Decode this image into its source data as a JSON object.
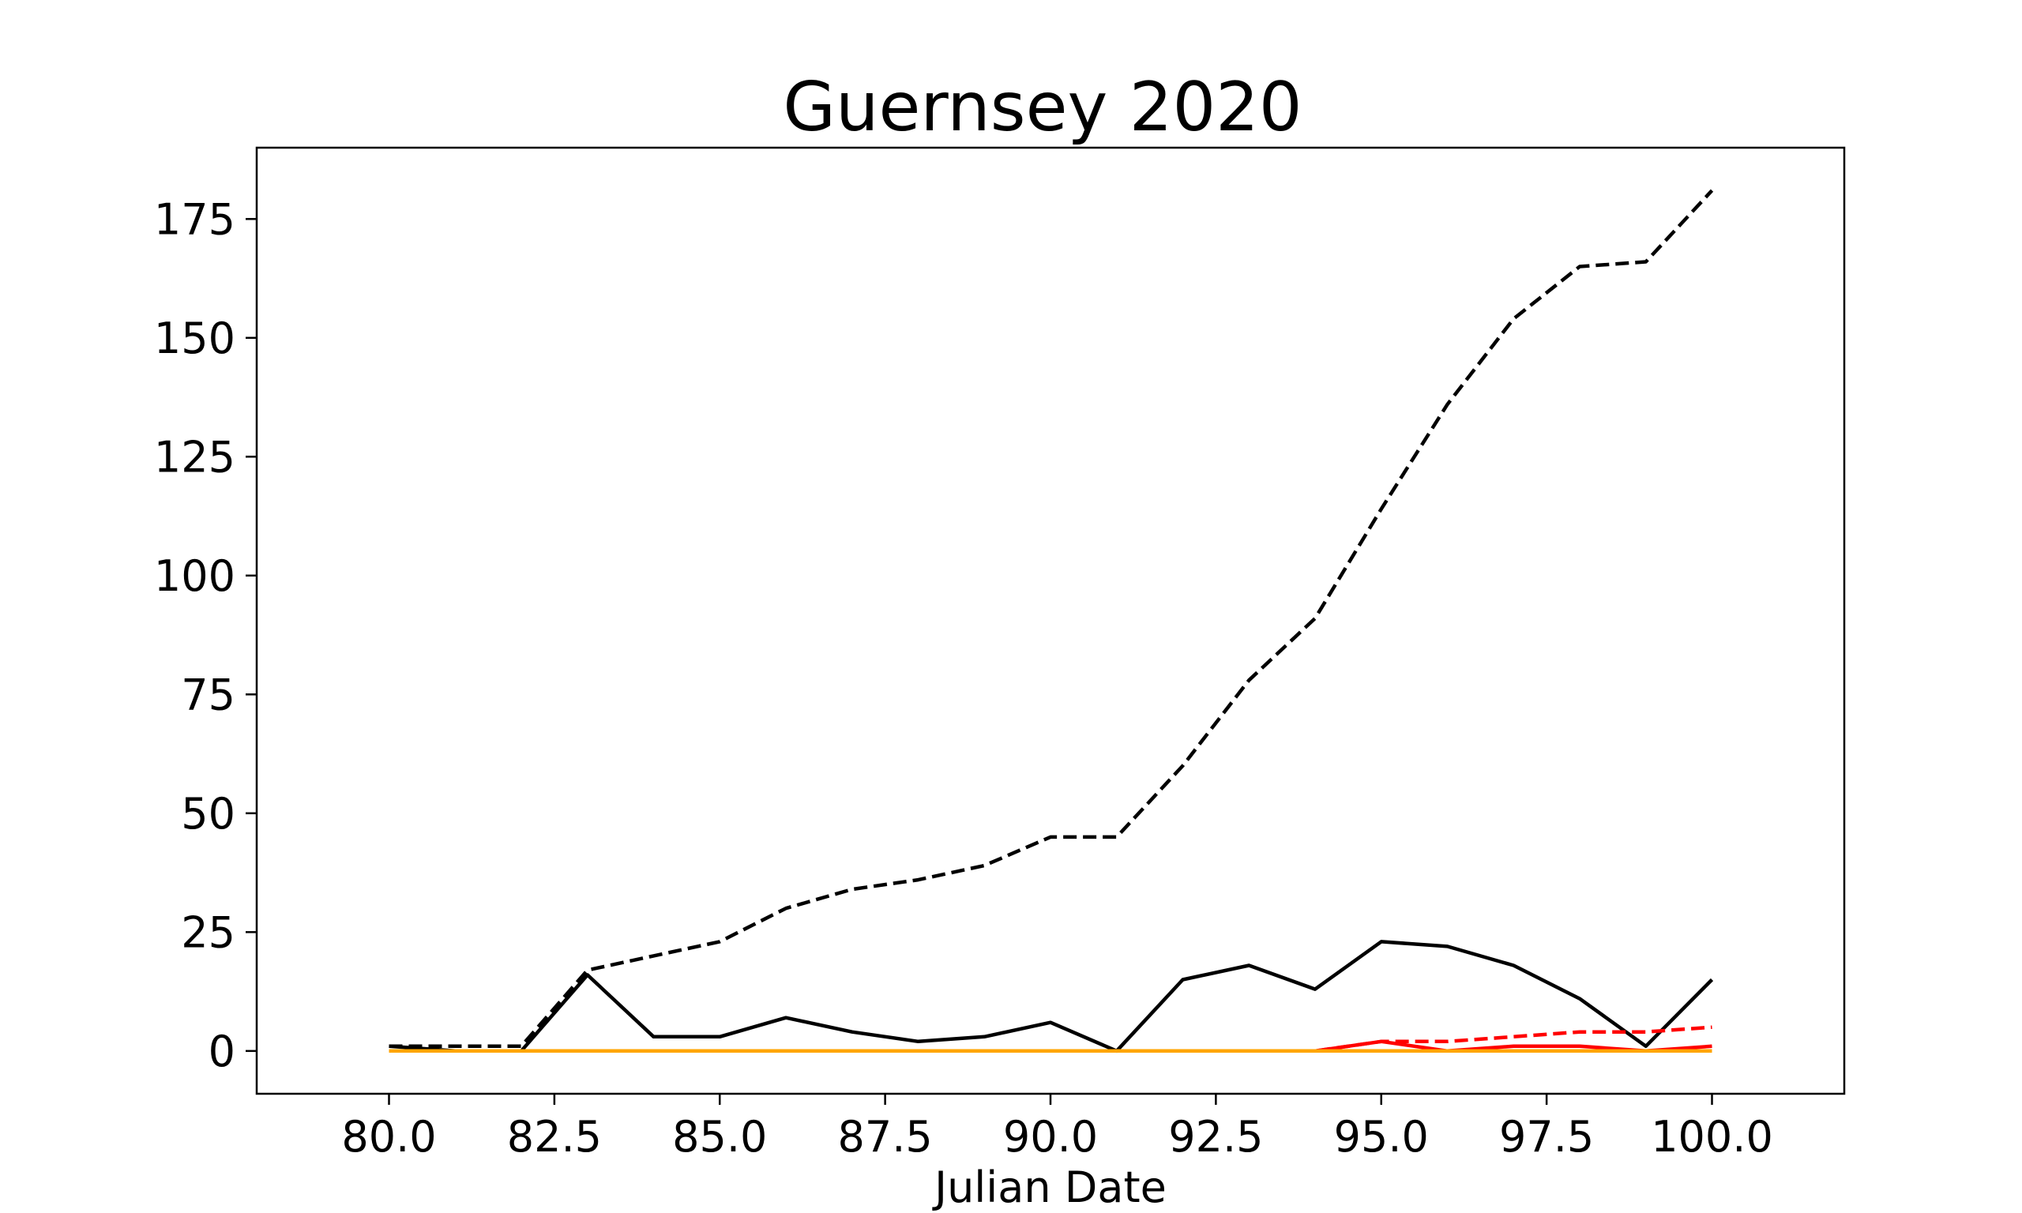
{
  "chart_data": {
    "type": "line",
    "title": "Guernsey 2020",
    "xlabel": "Julian Date",
    "ylabel": "",
    "xlim": [
      78,
      102
    ],
    "ylim": [
      -9,
      190
    ],
    "xticks": [
      80,
      82.5,
      85,
      87.5,
      90,
      92.5,
      95,
      97.5,
      100
    ],
    "xtick_labels": [
      "80.0",
      "82.5",
      "85.0",
      "87.5",
      "90.0",
      "92.5",
      "95.0",
      "97.5",
      "100.0"
    ],
    "yticks": [
      0,
      25,
      50,
      75,
      100,
      125,
      150,
      175
    ],
    "ytick_labels": [
      "0",
      "25",
      "50",
      "75",
      "100",
      "125",
      "150",
      "175"
    ],
    "grid": false,
    "x": [
      80,
      81,
      82,
      83,
      84,
      85,
      86,
      87,
      88,
      89,
      90,
      91,
      92,
      93,
      94,
      95,
      96,
      97,
      98,
      99,
      100
    ],
    "series": [
      {
        "color": "#000000",
        "style": "dashed",
        "values": [
          1,
          1,
          1,
          17,
          20,
          23,
          30,
          34,
          36,
          39,
          45,
          45,
          60,
          78,
          91,
          114,
          136,
          154,
          165,
          166,
          181
        ]
      },
      {
        "color": "#000000",
        "style": "solid",
        "values": [
          1,
          0,
          0,
          16,
          3,
          3,
          7,
          4,
          2,
          3,
          6,
          0,
          15,
          18,
          13,
          23,
          22,
          18,
          11,
          1,
          15
        ]
      },
      {
        "color": "#ff0000",
        "style": "dashed",
        "values": [
          0,
          0,
          0,
          0,
          0,
          0,
          0,
          0,
          0,
          0,
          0,
          0,
          0,
          0,
          0,
          2,
          2,
          3,
          4,
          4,
          5
        ]
      },
      {
        "color": "#ff0000",
        "style": "solid",
        "values": [
          0,
          0,
          0,
          0,
          0,
          0,
          0,
          0,
          0,
          0,
          0,
          0,
          0,
          0,
          0,
          2,
          0,
          1,
          1,
          0,
          1
        ]
      },
      {
        "color": "#ffa500",
        "style": "dashed",
        "values": [
          0,
          0,
          0,
          0,
          0,
          0,
          0,
          0,
          0,
          0,
          0,
          0,
          0,
          0,
          0,
          0,
          0,
          0,
          0,
          0,
          0
        ]
      },
      {
        "color": "#ffa500",
        "style": "solid",
        "values": [
          0,
          0,
          0,
          0,
          0,
          0,
          0,
          0,
          0,
          0,
          0,
          0,
          0,
          0,
          0,
          0,
          0,
          0,
          0,
          0,
          0
        ]
      }
    ]
  }
}
